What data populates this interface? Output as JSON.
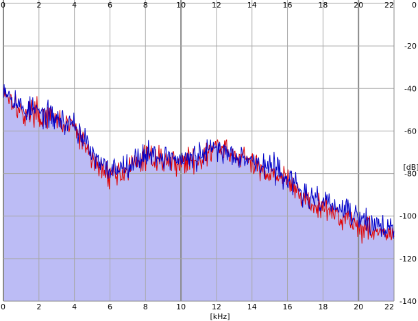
{
  "chart_data": {
    "type": "area",
    "xlabel": "[kHz]",
    "ylabel": "[dB]",
    "xlim": [
      0,
      22
    ],
    "ylim": [
      -140,
      0
    ],
    "x_ticks": [
      "0",
      "2",
      "4",
      "6",
      "8",
      "10",
      "12",
      "14",
      "16",
      "18",
      "20",
      "22"
    ],
    "y_ticks": [
      "0",
      "-20",
      "-40",
      "-60",
      "-80",
      "-100",
      "-120",
      "-140"
    ],
    "grid": true,
    "colors": {
      "fill": "#bcbcf5",
      "series_red": "#e00000",
      "series_blue": "#0000c8",
      "grid": "#a8a8a8",
      "grid_major": "#8a8a8a"
    },
    "series": [
      {
        "color": "#e00000",
        "x": [
          0,
          0.3,
          0.6,
          0.9,
          1.2,
          1.5,
          1.8,
          2.1,
          2.4,
          2.7,
          3.0,
          3.3,
          3.6,
          3.9,
          4.2,
          4.5,
          4.8,
          5.1,
          5.4,
          5.7,
          6.0,
          6.5,
          7.0,
          7.5,
          8.0,
          8.5,
          9.0,
          9.5,
          10.0,
          10.5,
          11.0,
          11.5,
          12.0,
          12.5,
          13.0,
          13.5,
          14.0,
          14.5,
          15.0,
          15.5,
          16.0,
          16.5,
          17.0,
          17.5,
          18.0,
          18.5,
          19.0,
          19.5,
          20.0,
          20.5,
          21.0,
          21.5,
          22.0
        ],
        "values": [
          -40,
          -44,
          -45,
          -51,
          -52,
          -51,
          -50,
          -54,
          -53,
          -55,
          -55,
          -56,
          -58,
          -56,
          -62,
          -66,
          -70,
          -74,
          -78,
          -79,
          -80,
          -80,
          -78,
          -76,
          -72,
          -72,
          -74,
          -74,
          -75,
          -74,
          -73,
          -72,
          -66,
          -70,
          -72,
          -72,
          -76,
          -78,
          -80,
          -80,
          -84,
          -88,
          -92,
          -96,
          -96,
          -98,
          -100,
          -101,
          -106,
          -105,
          -107,
          -108,
          -110
        ]
      },
      {
        "color": "#0000c8",
        "x": [
          0,
          0.3,
          0.6,
          0.9,
          1.2,
          1.5,
          1.8,
          2.1,
          2.4,
          2.7,
          3.0,
          3.3,
          3.6,
          3.9,
          4.2,
          4.5,
          4.8,
          5.1,
          5.4,
          5.7,
          6.0,
          6.5,
          7.0,
          7.5,
          8.0,
          8.5,
          9.0,
          9.5,
          10.0,
          10.5,
          11.0,
          11.5,
          12.0,
          12.5,
          13.0,
          13.5,
          14.0,
          14.5,
          15.0,
          15.5,
          16.0,
          16.5,
          17.0,
          17.5,
          18.0,
          18.5,
          19.0,
          19.5,
          20.0,
          20.5,
          21.0,
          21.5,
          22.0
        ],
        "values": [
          -38,
          -42,
          -44,
          -48,
          -50,
          -50,
          -50,
          -52,
          -52,
          -54,
          -54,
          -55,
          -57,
          -55,
          -60,
          -63,
          -68,
          -72,
          -76,
          -77,
          -78,
          -77,
          -75,
          -74,
          -70,
          -71,
          -72,
          -72,
          -74,
          -73,
          -72,
          -70,
          -68,
          -70,
          -71,
          -71,
          -74,
          -76,
          -77,
          -78,
          -82,
          -86,
          -90,
          -94,
          -92,
          -95,
          -97,
          -98,
          -101,
          -103,
          -104,
          -105,
          -106
        ]
      }
    ]
  }
}
